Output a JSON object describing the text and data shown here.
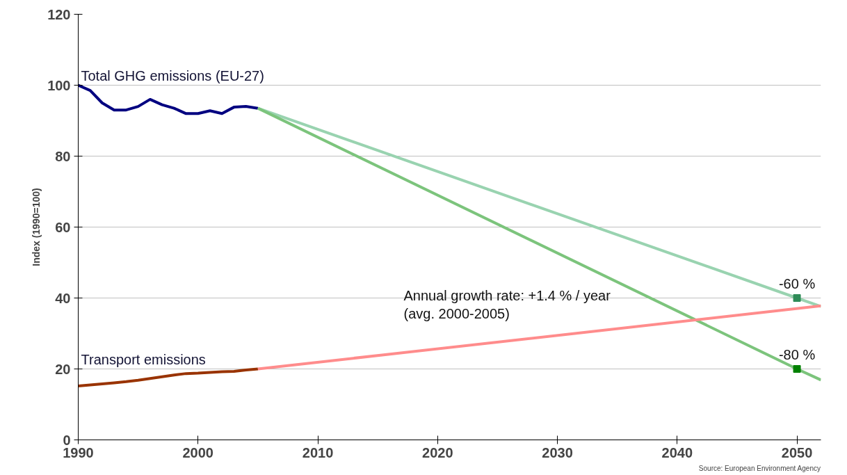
{
  "chart_data": {
    "type": "line",
    "ylabel": "Index (1990=100)",
    "xlim": [
      1990,
      2052
    ],
    "xticks": [
      1990,
      2000,
      2010,
      2020,
      2030,
      2040,
      2050
    ],
    "ylim": [
      0,
      120
    ],
    "yticks": [
      0,
      20,
      40,
      60,
      80,
      100,
      120
    ],
    "grid": "y",
    "line_style": "solid",
    "series": [
      {
        "name": "Total GHG emissions (EU-27)",
        "color": "#000080",
        "x": [
          1990,
          1991,
          1992,
          1993,
          1994,
          1995,
          1996,
          1997,
          1998,
          1999,
          2000,
          2001,
          2002,
          2003,
          2004,
          2005
        ],
        "values": [
          100,
          98.5,
          95,
          93,
          93,
          94,
          96,
          94.5,
          93.5,
          92,
          92,
          92.8,
          92,
          93.8,
          94,
          93.5
        ]
      },
      {
        "color": "#99d3b0",
        "x": [
          2005,
          2050,
          2052
        ],
        "values": [
          93.5,
          40,
          37.6
        ]
      },
      {
        "color": "#7cc47c",
        "x": [
          2005,
          2050,
          2052
        ],
        "values": [
          93.5,
          20,
          16.9
        ]
      },
      {
        "name": "Transport emissions",
        "color": "#993300",
        "x": [
          1990,
          1991,
          1992,
          1993,
          1994,
          1995,
          1996,
          1997,
          1998,
          1999,
          2000,
          2001,
          2002,
          2003,
          2004,
          2005
        ],
        "values": [
          15.2,
          15.5,
          15.8,
          16.1,
          16.4,
          16.8,
          17.3,
          17.8,
          18.3,
          18.7,
          18.8,
          19.0,
          19.2,
          19.3,
          19.7,
          20.0
        ]
      },
      {
        "color": "#ff8c8c",
        "x": [
          2005,
          2052
        ],
        "values": [
          20,
          37.8
        ]
      },
      {
        "type": "scatter",
        "marker": "square",
        "x": [
          2050,
          2050
        ],
        "values": [
          40,
          20
        ],
        "colors": [
          "#2e8b57",
          "#008000"
        ]
      }
    ],
    "annotations": [
      {
        "text": "-60 %",
        "x": 2050,
        "y": 40
      },
      {
        "text": "-80 %",
        "x": 2050,
        "y": 20
      },
      "Annual growth rate: +1.4 % / year\n(avg. 2000-2005)",
      "Source: European Environment Agency"
    ]
  }
}
